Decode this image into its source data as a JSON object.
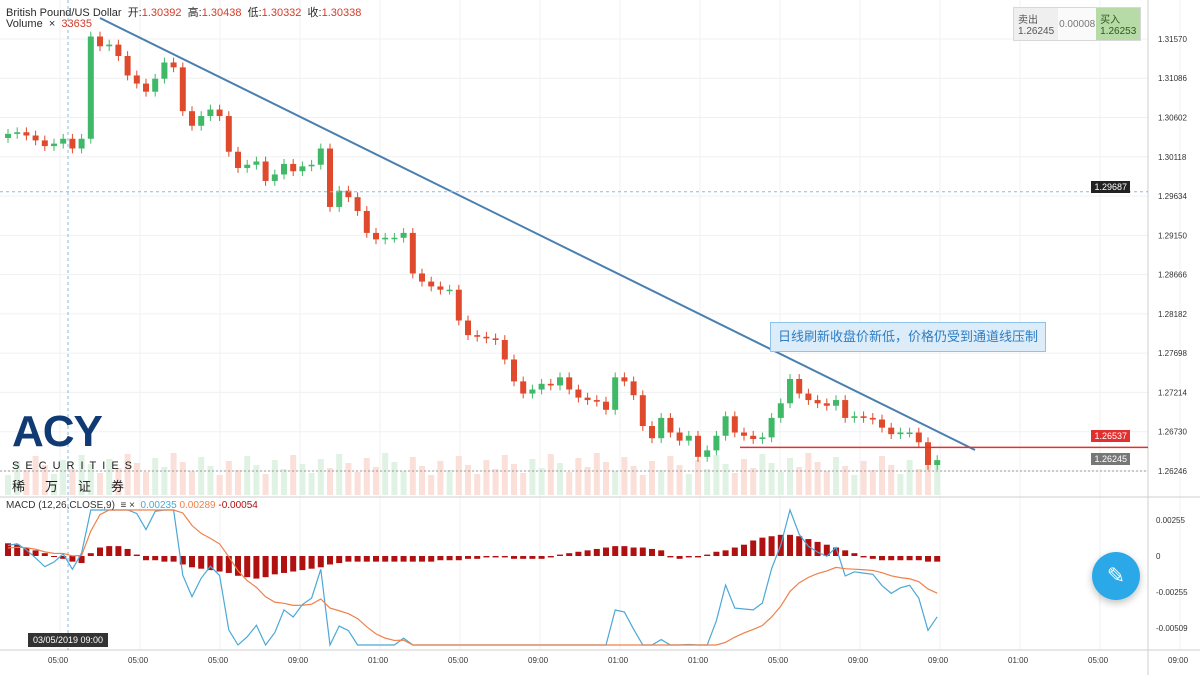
{
  "header": {
    "symbol": "British Pound/US Dollar",
    "open_label": "开:",
    "open": "1.30392",
    "high_label": "高:",
    "high": "1.30438",
    "low_label": "低:",
    "low": "1.30332",
    "close_label": "收:",
    "close": "1.30338",
    "volume_label": "Volume",
    "volume_close": "×",
    "volume_value": "33635"
  },
  "quote": {
    "sell_label": "卖出",
    "sell_price": "1.26245",
    "spread": "0.00008",
    "buy_label": "买入",
    "buy_price": "1.26253"
  },
  "annotation": "日线刷新收盘价新低，价格仍受到通道线压制",
  "price_tags": {
    "crosshair": "1.29687",
    "resistance": "1.26537",
    "last": "1.26245"
  },
  "logo": {
    "brand": "ACY",
    "tagline": "SECURITIES",
    "cn_name": "稀万证券"
  },
  "macd": {
    "label": "MACD (12,26,CLOSE,9)",
    "controls": "≡ ×",
    "v1": "0.00235",
    "v2": "0.00289",
    "v3": "-0.00054"
  },
  "crosshair_date": "03/05/2019  09:00",
  "colors": {
    "up": "#3fb868",
    "down": "#e04a2c",
    "trendline": "#4a7fb0",
    "resistance": "#e03030",
    "macd_line": "#4aa8d8",
    "signal_line": "#f0804a",
    "hist": "#b01010"
  },
  "chart_data": {
    "type": "candlestick",
    "price_ticks": [
      "1.31570",
      "1.31086",
      "1.30602",
      "1.30118",
      "1.29634",
      "1.29150",
      "1.28666",
      "1.28182",
      "1.27698",
      "1.27214",
      "1.26730",
      "1.26246"
    ],
    "macd_ticks": [
      "0.00255",
      "0",
      "-0.00255",
      "-0.00509"
    ],
    "x_ticks": [
      "05:00",
      "05:00",
      "05:00",
      "09:00",
      "01:00",
      "05:00",
      "09:00",
      "01:00",
      "01:00",
      "05:00",
      "09:00",
      "09:00",
      "01:00",
      "05:00",
      "09:00"
    ],
    "price_range": [
      1.2595,
      1.3205
    ],
    "closes": [
      1.304,
      1.3042,
      1.3038,
      1.3032,
      1.3025,
      1.3028,
      1.3034,
      1.3022,
      1.3034,
      1.316,
      1.3148,
      1.315,
      1.3136,
      1.3112,
      1.3102,
      1.3092,
      1.3108,
      1.3128,
      1.3122,
      1.3068,
      1.305,
      1.3062,
      1.307,
      1.3062,
      1.3018,
      1.2998,
      1.3002,
      1.3006,
      1.2982,
      1.299,
      1.3003,
      1.2994,
      1.3,
      1.3002,
      1.3022,
      1.295,
      1.297,
      1.2962,
      1.2945,
      1.2918,
      1.291,
      1.2912,
      1.2912,
      1.2918,
      1.2868,
      1.2858,
      1.2852,
      1.2848,
      1.2848,
      1.281,
      1.2792,
      1.279,
      1.2788,
      1.2786,
      1.2762,
      1.2735,
      1.272,
      1.2725,
      1.2732,
      1.273,
      1.274,
      1.2725,
      1.2715,
      1.2712,
      1.271,
      1.27,
      1.274,
      1.2735,
      1.2718,
      1.268,
      1.2665,
      1.269,
      1.2672,
      1.2662,
      1.2668,
      1.2642,
      1.265,
      1.2668,
      1.2692,
      1.2672,
      1.2668,
      1.2664,
      1.2666,
      1.269,
      1.2708,
      1.2738,
      1.272,
      1.2712,
      1.2708,
      1.2705,
      1.2712,
      1.269,
      1.2692,
      1.269,
      1.2688,
      1.2678,
      1.267,
      1.2672,
      1.2672,
      1.266,
      1.2632,
      1.2638
    ],
    "macd_hist": [
      0.0009,
      0.0008,
      0.0006,
      0.0004,
      0.0002,
      0.0,
      -0.0002,
      -0.0004,
      -0.0005,
      0.0002,
      0.0006,
      0.0007,
      0.0007,
      0.0005,
      0.0001,
      -0.0003,
      -0.0003,
      -0.0004,
      -0.0004,
      -0.0006,
      -0.0008,
      -0.0009,
      -0.001,
      -0.0011,
      -0.0012,
      -0.0014,
      -0.0015,
      -0.0016,
      -0.0015,
      -0.0013,
      -0.0012,
      -0.0011,
      -0.001,
      -0.0009,
      -0.0008,
      -0.0006,
      -0.0005,
      -0.0004,
      -0.0004,
      -0.0004,
      -0.0004,
      -0.0004,
      -0.0004,
      -0.0004,
      -0.0004,
      -0.0004,
      -0.0004,
      -0.0003,
      -0.0003,
      -0.0003,
      -0.0002,
      -0.0002,
      -0.0001,
      -0.0001,
      -0.0001,
      -0.0002,
      -0.0002,
      -0.0002,
      -0.0002,
      -0.0001,
      0.0001,
      0.0002,
      0.0003,
      0.0004,
      0.0005,
      0.0006,
      0.0007,
      0.0007,
      0.0006,
      0.0006,
      0.0005,
      0.0004,
      -0.0001,
      -0.0002,
      -0.0001,
      -0.0001,
      0.0001,
      0.0003,
      0.0004,
      0.0006,
      0.0008,
      0.0011,
      0.0013,
      0.0014,
      0.0015,
      0.0015,
      0.0014,
      0.0012,
      0.001,
      0.0008,
      0.0006,
      0.0004,
      0.0002,
      -0.0001,
      -0.0002,
      -0.0003,
      -0.0003,
      -0.0003,
      -0.0003,
      -0.0003,
      -0.0004,
      -0.0004
    ]
  }
}
